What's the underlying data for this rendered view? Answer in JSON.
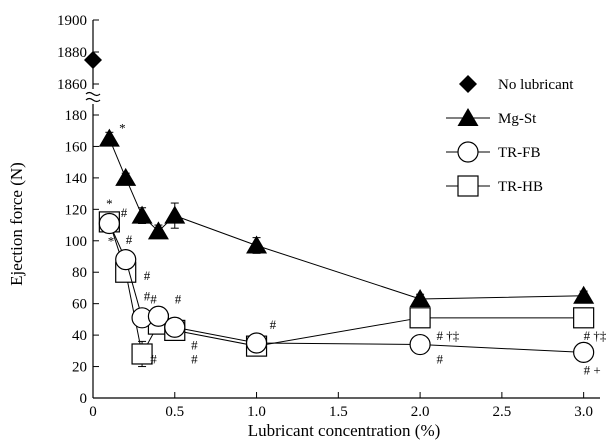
{
  "chart_data": {
    "type": "scatter",
    "xlabel": "Lubricant concentration (%)",
    "ylabel": "Ejection force (N)",
    "x_ticks": [
      0,
      0.5,
      1.0,
      1.5,
      2.0,
      2.5,
      3.0
    ],
    "x_tick_labels": [
      "0",
      "0.5",
      "1.0",
      "1.5",
      "2.0",
      "2.5",
      "3.0"
    ],
    "xlim": [
      0,
      3.1
    ],
    "y_lower": {
      "ylim": [
        0,
        180
      ],
      "ticks": [
        0,
        20,
        40,
        60,
        80,
        100,
        120,
        140,
        160,
        180
      ],
      "tick_labels": [
        "0",
        "20",
        "40",
        "60",
        "80",
        "100",
        "120",
        "140",
        "160",
        "180"
      ]
    },
    "y_upper": {
      "ylim": [
        1860,
        1900
      ],
      "ticks": [
        1860,
        1880,
        1900
      ],
      "tick_labels": [
        "1860",
        "1880",
        "1900"
      ]
    },
    "axis_break": true,
    "legend_placement": "top-right",
    "series": [
      {
        "name": "No lubricant",
        "marker": "diamond",
        "connected": false,
        "points": [
          {
            "x": 0,
            "y": 1875
          }
        ]
      },
      {
        "name": "Mg-St",
        "marker": "triangle",
        "connected": true,
        "points": [
          {
            "x": 0.1,
            "y": 165,
            "err": 4
          },
          {
            "x": 0.2,
            "y": 140,
            "err": 3
          },
          {
            "x": 0.3,
            "y": 116,
            "err": 5
          },
          {
            "x": 0.4,
            "y": 106,
            "err": 4
          },
          {
            "x": 0.5,
            "y": 116,
            "err": 8
          },
          {
            "x": 1.0,
            "y": 97,
            "err": 5
          },
          {
            "x": 2.0,
            "y": 63,
            "err": 3
          },
          {
            "x": 3.0,
            "y": 65,
            "err": 3
          }
        ]
      },
      {
        "name": "TR-FB",
        "marker": "circle",
        "connected": true,
        "points": [
          {
            "x": 0.1,
            "y": 111,
            "err": 4
          },
          {
            "x": 0.2,
            "y": 88,
            "err": 3
          },
          {
            "x": 0.3,
            "y": 51,
            "err": 3
          },
          {
            "x": 0.4,
            "y": 52,
            "err": 3
          },
          {
            "x": 0.5,
            "y": 45,
            "err": 3
          },
          {
            "x": 1.0,
            "y": 35,
            "err": 3
          },
          {
            "x": 2.0,
            "y": 34,
            "err": 3
          },
          {
            "x": 3.0,
            "y": 29,
            "err": 3
          }
        ]
      },
      {
        "name": "TR-HB",
        "marker": "square",
        "connected": true,
        "points": [
          {
            "x": 0.1,
            "y": 112,
            "err": 4
          },
          {
            "x": 0.2,
            "y": 80,
            "err": 4
          },
          {
            "x": 0.3,
            "y": 28,
            "err": 8
          },
          {
            "x": 0.4,
            "y": 47,
            "err": 3
          },
          {
            "x": 0.5,
            "y": 43,
            "err": 3
          },
          {
            "x": 1.0,
            "y": 33,
            "err": 3
          },
          {
            "x": 2.0,
            "y": 51,
            "err": 4
          },
          {
            "x": 3.0,
            "y": 51,
            "err": 3
          }
        ]
      }
    ],
    "annotations": [
      {
        "text": "*",
        "x": 0.16,
        "y": 169,
        "size": "large"
      },
      {
        "text": "*",
        "x": 0.08,
        "y": 121,
        "size": "large"
      },
      {
        "text": "*",
        "x": 0.09,
        "y": 97,
        "size": "large"
      },
      {
        "text": "#",
        "x": 0.17,
        "y": 115
      },
      {
        "text": "#",
        "x": 0.2,
        "y": 98
      },
      {
        "text": "#",
        "x": 0.31,
        "y": 75
      },
      {
        "text": "#",
        "x": 0.31,
        "y": 62
      },
      {
        "text": "#",
        "x": 0.35,
        "y": 60
      },
      {
        "text": "#",
        "x": 0.5,
        "y": 60
      },
      {
        "text": "#",
        "x": 0.35,
        "y": 22
      },
      {
        "text": "#",
        "x": 0.6,
        "y": 22
      },
      {
        "text": "#",
        "x": 0.6,
        "y": 31
      },
      {
        "text": "#",
        "x": 1.08,
        "y": 44
      },
      {
        "text": "# †‡",
        "x": 2.1,
        "y": 37
      },
      {
        "text": "#",
        "x": 2.1,
        "y": 22
      },
      {
        "text": "# †‡",
        "x": 3.0,
        "y": 37
      },
      {
        "text": "# +",
        "x": 3.0,
        "y": 15
      }
    ]
  },
  "colors": {
    "marker_fill": "#000000",
    "open_marker_fill": "#ffffff",
    "line": "#000000"
  }
}
